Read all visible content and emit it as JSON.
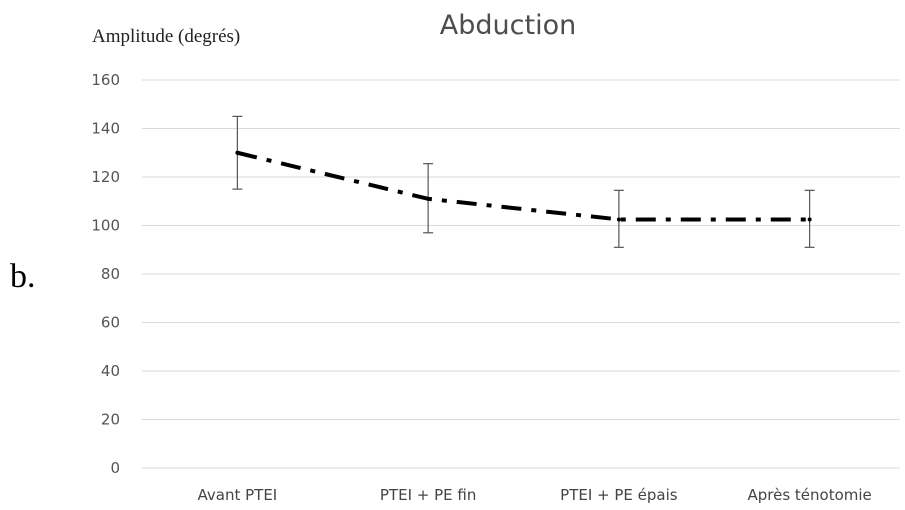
{
  "panel_label": "b.",
  "chart_data": {
    "type": "line",
    "title": "Abduction",
    "ylabel": "Amplitude (degrés)",
    "xlabel": "",
    "categories": [
      "Avant PTEI",
      "PTEI + PE fin",
      "PTEI + PE épais",
      "Après ténotomie"
    ],
    "series": [
      {
        "values": [
          130,
          111,
          102.5,
          102.5
        ],
        "error_low": [
          115,
          97,
          91,
          91
        ],
        "error_high": [
          145,
          125.5,
          114.5,
          114.5
        ]
      }
    ],
    "ylim": [
      0,
      160
    ],
    "yticks": [
      0,
      20,
      40,
      60,
      80,
      100,
      120,
      140,
      160
    ],
    "grid": true,
    "line_style": "dash-dot",
    "colors": {
      "line": "#000000",
      "grid": "#d9d9d9",
      "error_bar": "#555555"
    }
  }
}
